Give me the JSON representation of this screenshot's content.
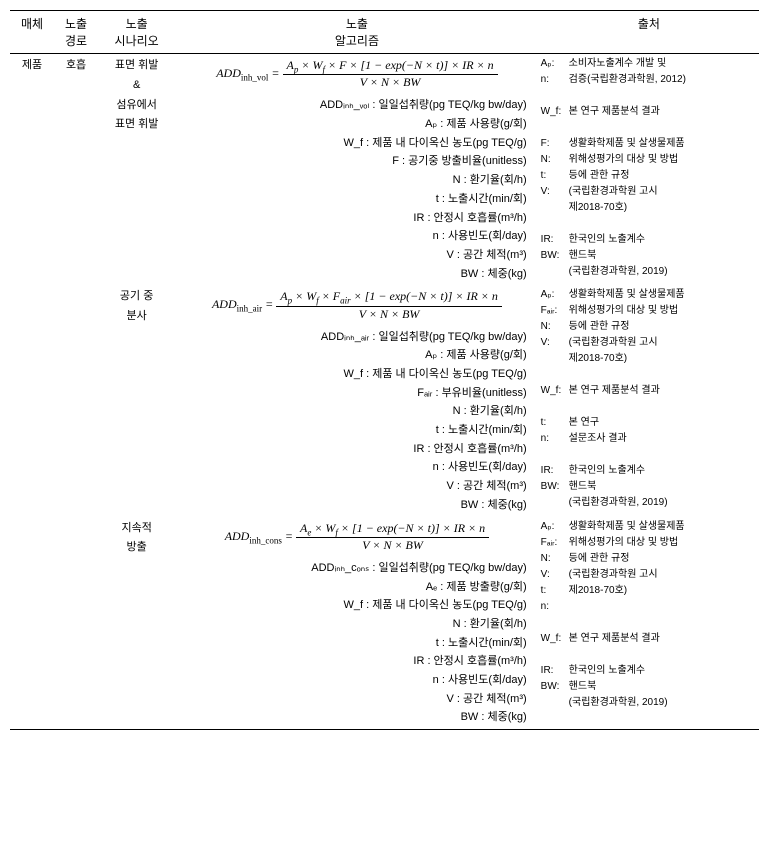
{
  "header": {
    "media": "매체",
    "route_l1": "노출",
    "route_l2": "경로",
    "scenario_l1": "노출",
    "scenario_l2": "시나리오",
    "algo_l1": "노출",
    "algo_l2": "알고리즘",
    "source": "출처"
  },
  "media": "제품",
  "route": "호흡",
  "rows": [
    {
      "scenario_l1": "표면 휘발",
      "scenario_l2": "&",
      "scenario_l3": "섬유에서",
      "scenario_l4": "표면 휘발",
      "formula_lhs": "ADD",
      "formula_sub": "inh_vol",
      "num": "A_p × W_f × F × [1 − exp(−N × t)] × IR × n",
      "den": "V × N × BW",
      "defs": [
        "ADDᵢₙₕ_ᵥₒₗ : 일일섭취량(pg TEQ/kg bw/day)",
        "Aₚ : 제품 사용량(g/회)",
        "W_f : 제품 내 다이옥신 농도(pg TEQ/g)",
        "F : 공기중 방출비율(unitless)",
        "N : 환기율(회/h)",
        "t : 노출시간(min/회)",
        "IR : 안정시 호흡률(m³/h)",
        "n : 사용빈도(회/day)",
        "V : 공간 체적(m³)",
        "BW : 체중(kg)"
      ],
      "sources": [
        {
          "k": "Aₚ:",
          "v": "소비자노출계수 개발 및"
        },
        {
          "k": "n:",
          "v": "검증(국립환경과학원, 2012)"
        },
        {
          "k": "",
          "v": ""
        },
        {
          "k": "W_f:",
          "v": "본 연구 제품분석 결과"
        },
        {
          "k": "",
          "v": ""
        },
        {
          "k": "F:",
          "v": "생활화학제품 및 살생물제품"
        },
        {
          "k": "N:",
          "v": "위해성평가의 대상 및 방법"
        },
        {
          "k": "t:",
          "v": "등에 관한 규정"
        },
        {
          "k": "V:",
          "v": "(국립환경과학원 고시"
        },
        {
          "k": "",
          "v": "제2018-70호)"
        },
        {
          "k": "",
          "v": ""
        },
        {
          "k": "IR:",
          "v": "한국인의 노출계수"
        },
        {
          "k": "BW:",
          "v": "핸드북"
        },
        {
          "k": "",
          "v": "(국립환경과학원, 2019)"
        }
      ]
    },
    {
      "scenario_l1": "공기 중",
      "scenario_l2": "분사",
      "scenario_l3": "",
      "scenario_l4": "",
      "formula_lhs": "ADD",
      "formula_sub": "inh_air",
      "num": "A_p × W_f × F_air × [1 − exp(−N × t)] × IR × n",
      "den": "V × N × BW",
      "defs": [
        "ADDᵢₙₕ_ₐᵢᵣ : 일일섭취량(pg TEQ/kg bw/day)",
        "Aₚ : 제품 사용량(g/회)",
        "W_f : 제품 내 다이옥신 농도(pg TEQ/g)",
        "Fₐᵢᵣ : 부유비율(unitless)",
        "N : 환기율(회/h)",
        "t : 노출시간(min/회)",
        "IR : 안정시 호흡률(m³/h)",
        "n : 사용빈도(회/day)",
        "V : 공간 체적(m³)",
        "BW : 체중(kg)"
      ],
      "sources": [
        {
          "k": "Aₚ:",
          "v": "생활화학제품 및 살생물제품"
        },
        {
          "k": "Fₐᵢᵣ:",
          "v": "위해성평가의 대상 및 방법"
        },
        {
          "k": "N:",
          "v": "등에 관한 규정"
        },
        {
          "k": "V:",
          "v": "(국립환경과학원 고시"
        },
        {
          "k": "",
          "v": "제2018-70호)"
        },
        {
          "k": "",
          "v": ""
        },
        {
          "k": "W_f:",
          "v": "본 연구 제품분석 결과"
        },
        {
          "k": "",
          "v": ""
        },
        {
          "k": "t:",
          "v": "본 연구"
        },
        {
          "k": "n:",
          "v": "설문조사 결과"
        },
        {
          "k": "",
          "v": ""
        },
        {
          "k": "IR:",
          "v": "한국인의 노출계수"
        },
        {
          "k": "BW:",
          "v": "핸드북"
        },
        {
          "k": "",
          "v": "(국립환경과학원, 2019)"
        }
      ]
    },
    {
      "scenario_l1": "지속적",
      "scenario_l2": "방출",
      "scenario_l3": "",
      "scenario_l4": "",
      "formula_lhs": "ADD",
      "formula_sub": "inh_cons",
      "num": "A_e × W_f × [1 − exp(−N × t)] × IR × n",
      "den": "V × N × BW",
      "defs": [
        "ADDᵢₙₕ_cₒₙₛ : 일일섭취량(pg TEQ/kg bw/day)",
        "Aₑ : 제품 방출량(g/회)",
        "W_f : 제품 내 다이옥신 농도(pg TEQ/g)",
        "N : 환기율(회/h)",
        "t : 노출시간(min/회)",
        "IR : 안정시 호흡률(m³/h)",
        "n : 사용빈도(회/day)",
        "V : 공간 체적(m³)",
        "BW : 체중(kg)"
      ],
      "sources": [
        {
          "k": "Aₚ:",
          "v": "생활화학제품 및 살생물제품"
        },
        {
          "k": "Fₐᵢᵣ:",
          "v": "위해성평가의 대상 및 방법"
        },
        {
          "k": "N:",
          "v": "등에 관한 규정"
        },
        {
          "k": "V:",
          "v": "(국립환경과학원 고시"
        },
        {
          "k": "t:",
          "v": "제2018-70호)"
        },
        {
          "k": "n:",
          "v": ""
        },
        {
          "k": "",
          "v": ""
        },
        {
          "k": "W_f:",
          "v": "본 연구 제품분석 결과"
        },
        {
          "k": "",
          "v": ""
        },
        {
          "k": "IR:",
          "v": "한국인의 노출계수"
        },
        {
          "k": "BW:",
          "v": "핸드북"
        },
        {
          "k": "",
          "v": "(국립환경과학원, 2019)"
        }
      ]
    }
  ]
}
